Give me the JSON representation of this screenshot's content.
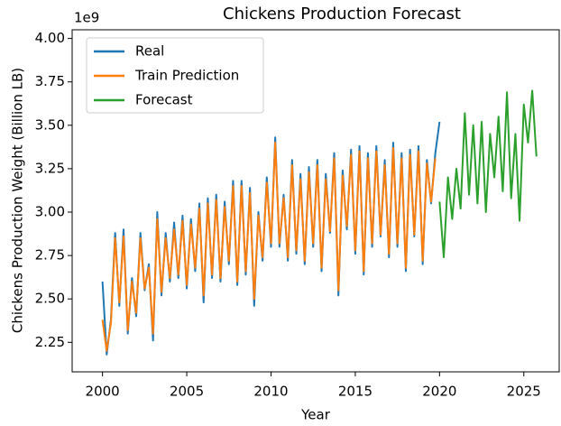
{
  "chart_data": {
    "type": "line",
    "title": "Chickens Production Forecast",
    "xlabel": "Year",
    "ylabel": "Chickens Production Weight (Billion LB)",
    "y_offset_label": "1e9",
    "x": [
      2000,
      2000.25,
      2000.5,
      2000.75,
      2001,
      2001.25,
      2001.5,
      2001.75,
      2002,
      2002.25,
      2002.5,
      2002.75,
      2003,
      2003.25,
      2003.5,
      2003.75,
      2004,
      2004.25,
      2004.5,
      2004.75,
      2005,
      2005.25,
      2005.5,
      2005.75,
      2006,
      2006.25,
      2006.5,
      2006.75,
      2007,
      2007.25,
      2007.5,
      2007.75,
      2008,
      2008.25,
      2008.5,
      2008.75,
      2009,
      2009.25,
      2009.5,
      2009.75,
      2010,
      2010.25,
      2010.5,
      2010.75,
      2011,
      2011.25,
      2011.5,
      2011.75,
      2012,
      2012.25,
      2012.5,
      2012.75,
      2013,
      2013.25,
      2013.5,
      2013.75,
      2014,
      2014.25,
      2014.5,
      2014.75,
      2015,
      2015.25,
      2015.5,
      2015.75,
      2016,
      2016.25,
      2016.5,
      2016.75,
      2017,
      2017.25,
      2017.5,
      2017.75,
      2018,
      2018.25,
      2018.5,
      2018.75,
      2019,
      2019.25,
      2019.5,
      2019.75,
      2020
    ],
    "series": [
      {
        "name": "Real",
        "color": "#1f77b4",
        "values": [
          2.6,
          2.18,
          2.38,
          2.88,
          2.46,
          2.9,
          2.3,
          2.62,
          2.4,
          2.88,
          2.55,
          2.7,
          2.26,
          3.0,
          2.52,
          2.88,
          2.6,
          2.94,
          2.62,
          2.98,
          2.56,
          2.96,
          2.66,
          3.05,
          2.48,
          3.08,
          2.62,
          3.1,
          2.6,
          3.06,
          2.7,
          3.18,
          2.58,
          3.18,
          2.64,
          3.14,
          2.46,
          3.0,
          2.72,
          3.2,
          2.8,
          3.43,
          2.8,
          3.1,
          2.72,
          3.3,
          2.76,
          3.22,
          2.7,
          3.26,
          2.8,
          3.3,
          2.66,
          3.22,
          2.88,
          3.34,
          2.52,
          3.24,
          2.9,
          3.36,
          2.76,
          3.38,
          2.64,
          3.34,
          2.8,
          3.38,
          2.86,
          3.3,
          2.74,
          3.4,
          2.8,
          3.34,
          2.66,
          3.36,
          2.86,
          3.38,
          2.7,
          3.3,
          3.05,
          3.34,
          3.52
        ]
      },
      {
        "name": "Train Prediction",
        "color": "#ff7f0e",
        "values": [
          2.38,
          2.2,
          2.36,
          2.85,
          2.48,
          2.86,
          2.32,
          2.6,
          2.42,
          2.85,
          2.56,
          2.68,
          2.3,
          2.96,
          2.54,
          2.85,
          2.62,
          2.9,
          2.64,
          2.95,
          2.58,
          2.93,
          2.68,
          3.02,
          2.52,
          3.05,
          2.64,
          3.07,
          2.62,
          3.03,
          2.72,
          3.15,
          2.6,
          3.15,
          2.66,
          3.11,
          2.5,
          2.98,
          2.74,
          3.17,
          2.82,
          3.4,
          2.82,
          3.08,
          2.74,
          3.27,
          2.78,
          3.19,
          2.72,
          3.23,
          2.82,
          3.27,
          2.68,
          3.19,
          2.89,
          3.31,
          2.55,
          3.21,
          2.92,
          3.33,
          2.78,
          3.35,
          2.66,
          3.31,
          2.82,
          3.35,
          2.87,
          3.27,
          2.76,
          3.37,
          2.82,
          3.31,
          2.68,
          3.33,
          2.87,
          3.35,
          2.72,
          3.28,
          3.06,
          3.31,
          null
        ]
      },
      {
        "name": "Forecast",
        "color": "#2ca02c",
        "x": [
          2020,
          2020.25,
          2020.5,
          2020.75,
          2021,
          2021.25,
          2021.5,
          2021.75,
          2022,
          2022.25,
          2022.5,
          2022.75,
          2023,
          2023.25,
          2023.5,
          2023.75,
          2024,
          2024.25,
          2024.5,
          2024.75,
          2025,
          2025.25,
          2025.5,
          2025.75
        ],
        "values": [
          3.06,
          2.74,
          3.2,
          2.96,
          3.25,
          3.02,
          3.57,
          3.1,
          3.5,
          3.05,
          3.52,
          3.0,
          3.45,
          3.2,
          3.55,
          3.12,
          3.69,
          3.08,
          3.45,
          2.95,
          3.62,
          3.4,
          3.7,
          3.32
        ]
      }
    ],
    "xlim": [
      1998.2,
      2027.1
    ],
    "xticks": [
      2000,
      2005,
      2010,
      2015,
      2020,
      2025
    ],
    "ylim": [
      2.08,
      4.05
    ],
    "yticks": [
      2.25,
      {
        "value": 2.5,
        "label": "2.50"
      },
      2.75,
      {
        "value": 3,
        "label": "3.00"
      },
      3.25,
      {
        "value": 3.5,
        "label": "3.50"
      },
      3.75,
      {
        "value": 4,
        "label": "4.00"
      }
    ],
    "legend": "upper left",
    "grid": false
  }
}
